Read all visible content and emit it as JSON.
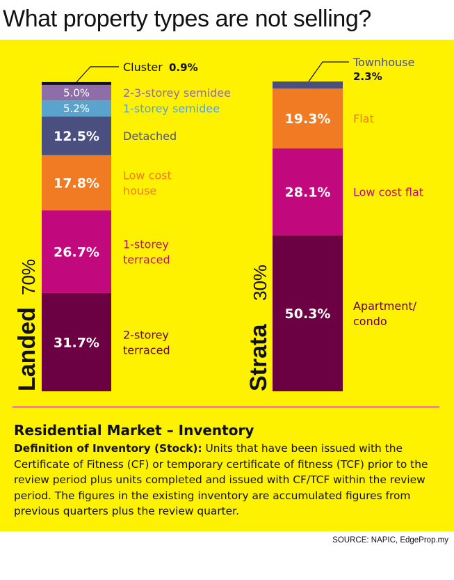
{
  "title": "What property types are not selling?",
  "chart_data": {
    "type": "stacked-bar",
    "ylim": [
      0,
      100
    ],
    "bars": [
      {
        "name": "Landed",
        "share": "70%",
        "segments": [
          {
            "label": "2-storey terraced",
            "value": 31.7,
            "value_text": "31.7%",
            "color": "#6b0043",
            "label_color": "#6b0043"
          },
          {
            "label": "1-storey terraced",
            "value": 26.7,
            "value_text": "26.7%",
            "color": "#c2087d",
            "label_color": "#c2087d"
          },
          {
            "label": "Low cost house",
            "value": 17.8,
            "value_text": "17.8%",
            "color": "#f07b22",
            "label_color": "#f07b22"
          },
          {
            "label": "Detached",
            "value": 12.5,
            "value_text": "12.5%",
            "color": "#4a4f80",
            "label_color": "#4a4f80"
          },
          {
            "label": "1-storey semidee",
            "value": 5.2,
            "value_text": "5.2%",
            "color": "#5aa3cf",
            "label_color": "#5aa3cf"
          },
          {
            "label": "2-3-storey semidee",
            "value": 5.0,
            "value_text": "5.0%",
            "color": "#8e6da9",
            "label_color": "#8e6da9"
          },
          {
            "label": "Cluster",
            "value": 0.9,
            "value_text": "0.9%",
            "color": "#111111",
            "label_color": "#111111"
          }
        ]
      },
      {
        "name": "Strata",
        "share": "30%",
        "segments": [
          {
            "label": "Apartment/ condo",
            "value": 50.3,
            "value_text": "50.3%",
            "color": "#6b0043",
            "label_color": "#6b0043"
          },
          {
            "label": "Low cost flat",
            "value": 28.1,
            "value_text": "28.1%",
            "color": "#c2087d",
            "label_color": "#c2087d"
          },
          {
            "label": "Flat",
            "value": 19.3,
            "value_text": "19.3%",
            "color": "#f07b22",
            "label_color": "#f07b22"
          },
          {
            "label": "Townhouse",
            "value": 2.3,
            "value_text": "2.3%",
            "color": "#4a4f80",
            "label_color": "#4a4f80"
          }
        ]
      }
    ]
  },
  "footer": {
    "title": "Residential Market – Inventory",
    "definition_term": "Definition of Inventory (Stock):",
    "definition_text": " Units that have been issued with the Certificate of Fitness (CF) or temporary certificate of fitness (TCF) prior to the review period plus units completed and issued with CF/TCF within the review period. The figures in the existing inventory are accumulated figures from previous quarters plus the review quarter."
  },
  "source": "SOURCE: NAPIC, EdgeProp.my"
}
